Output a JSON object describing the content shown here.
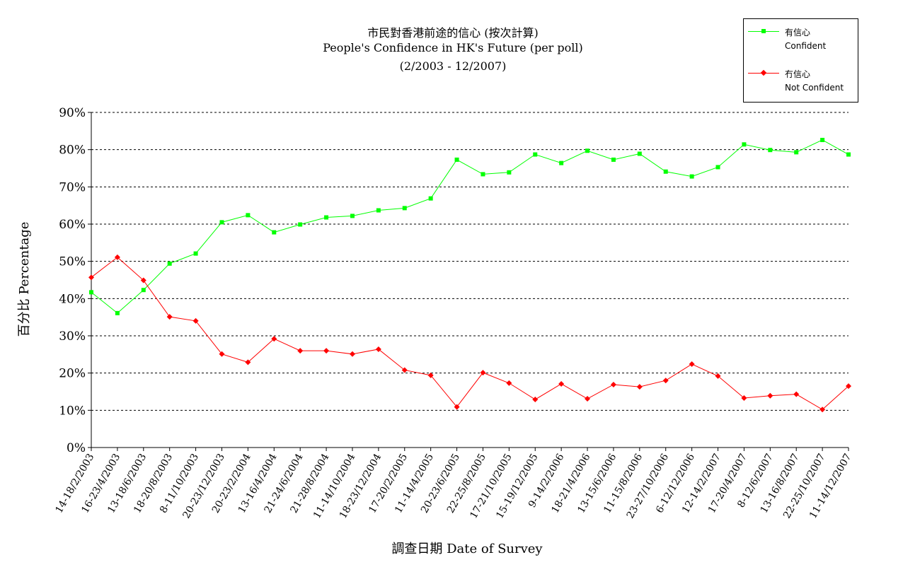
{
  "chart_data": {
    "type": "line",
    "title": [
      "市民對香港前途的信心 (按次計算)",
      "People's Confidence in HK's Future (per poll)",
      "(2/2003 - 12/2007)"
    ],
    "xlabel": "調查日期 Date of Survey",
    "ylabel": "百分比 Percentage",
    "ylim": [
      0,
      90
    ],
    "yticks": [
      "0%",
      "10%",
      "20%",
      "30%",
      "40%",
      "50%",
      "60%",
      "70%",
      "80%",
      "90%"
    ],
    "grid": true,
    "legend_position": "top-right",
    "categories": [
      "14-18/2/2003",
      "16-23/4/2003",
      "13-18/6/2003",
      "18-20/8/2003",
      "8-11/10/2003",
      "20-23/12/2003",
      "20-23/2/2004",
      "13-16/4/2004",
      "21-24/6/2004",
      "21-28/8/2004",
      "11-14/10/2004",
      "18-23/12/2004",
      "17-20/2/2005",
      "11-14/4/2005",
      "20-23/6/2005",
      "22-25/8/2005",
      "17-21/10/2005",
      "15-19/12/2005",
      "9-14/2/2006",
      "18-21/4/2006",
      "13-15/6/2006",
      "11-15/8/2006",
      "23-27/10/2006",
      "6-12/12/2006",
      "12-14/2/2007",
      "17-20/4/2007",
      "8-12/6/2007",
      "13-16/8/2007",
      "22-25/10/2007",
      "11-14/12/2007"
    ],
    "series": [
      {
        "name": "有信心",
        "name_en": "Confident",
        "color": "#00ff00",
        "marker": "square",
        "values": [
          41.7,
          36.1,
          42.3,
          49.4,
          52.1,
          60.5,
          62.4,
          57.8,
          59.9,
          61.8,
          62.2,
          63.7,
          64.3,
          66.9,
          77.3,
          73.4,
          73.9,
          78.7,
          76.4,
          79.7,
          77.3,
          78.9,
          74.1,
          72.8,
          75.3,
          81.4,
          79.9,
          79.3,
          82.6,
          78.7
        ]
      },
      {
        "name": "冇信心",
        "name_en": "Not Confident",
        "color": "#ff0000",
        "marker": "diamond",
        "values": [
          45.7,
          51.1,
          44.9,
          35.1,
          34.0,
          25.1,
          22.9,
          29.2,
          26.0,
          26.0,
          25.1,
          26.4,
          20.8,
          19.4,
          10.9,
          20.1,
          17.3,
          12.9,
          17.1,
          13.1,
          16.9,
          16.3,
          18.0,
          22.4,
          19.2,
          13.3,
          13.9,
          14.3,
          10.2,
          16.5
        ]
      }
    ]
  }
}
